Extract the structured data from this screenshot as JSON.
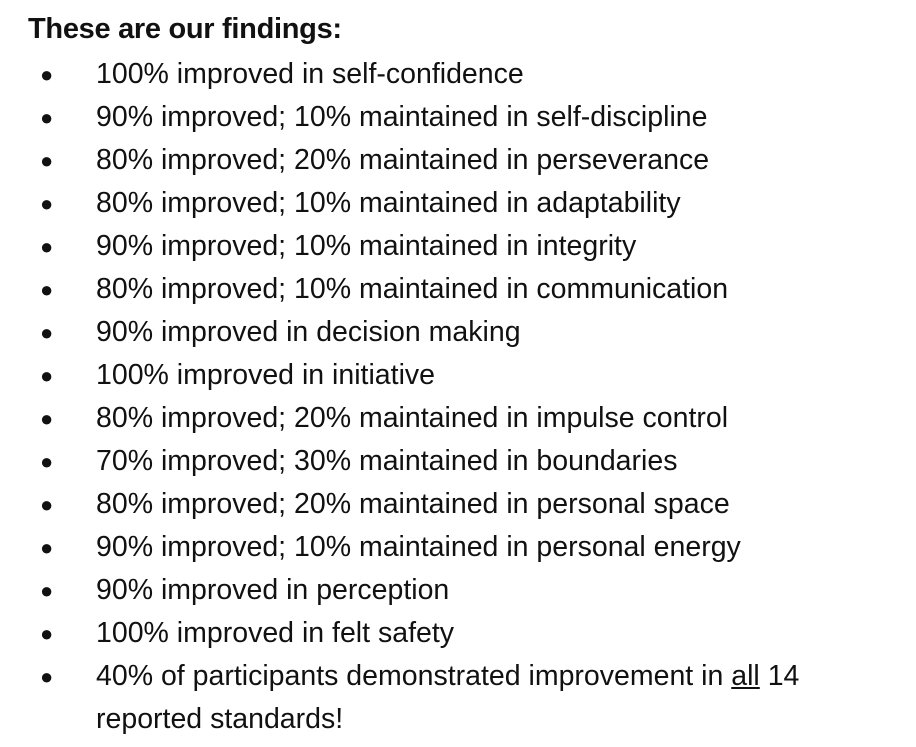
{
  "heading": "These are our findings:",
  "items": [
    "100% improved in self-confidence",
    "90% improved; 10% maintained in self-discipline",
    "80% improved; 20% maintained in perseverance",
    "80% improved; 10% maintained in adaptability",
    "90% improved; 10% maintained in integrity",
    "80% improved; 10% maintained in communication",
    "90% improved in decision making",
    "100% improved in initiative",
    "80% improved; 20% maintained in impulse control",
    "70% improved; 30% maintained in boundaries",
    "80% improved; 20% maintained in personal space",
    "90% improved; 10% maintained in personal energy",
    "90% improved in perception",
    "100% improved in felt safety"
  ],
  "summary": {
    "before": "40% of participants demonstrated improvement in",
    "underlined": "all",
    "after": "14 reported standards!"
  },
  "bullet": "●"
}
